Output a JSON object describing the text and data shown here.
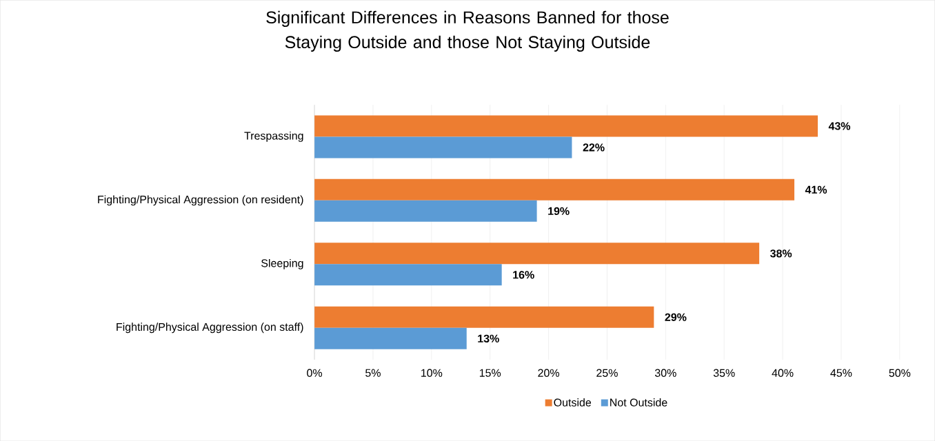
{
  "chart_data": {
    "type": "bar",
    "orientation": "horizontal",
    "title": "Significant Differences in Reasons Banned for those Staying Outside and those Not Staying Outside",
    "categories": [
      "Trespassing",
      "Fighting/Physical Aggression (on resident)",
      "Sleeping",
      "Fighting/Physical Aggression (on staff)"
    ],
    "series": [
      {
        "name": "Outside",
        "color": "#ed7d31",
        "values": [
          43,
          41,
          38,
          29
        ],
        "value_labels": [
          "43%",
          "41%",
          "38%",
          "29%"
        ]
      },
      {
        "name": "Not Outside",
        "color": "#5b9bd5",
        "values": [
          22,
          19,
          16,
          13
        ],
        "value_labels": [
          "22%",
          "19%",
          "16%",
          "13%"
        ]
      }
    ],
    "xlim": [
      0,
      50
    ],
    "xticks": [
      {
        "value": 0,
        "label": "0%"
      },
      {
        "value": 5,
        "label": "5%"
      },
      {
        "value": 10,
        "label": "10%"
      },
      {
        "value": 15,
        "label": "15%"
      },
      {
        "value": 20,
        "label": "20%"
      },
      {
        "value": 25,
        "label": "25%"
      },
      {
        "value": 30,
        "label": "30%"
      },
      {
        "value": 35,
        "label": "35%"
      },
      {
        "value": 40,
        "label": "40%"
      },
      {
        "value": 45,
        "label": "45%"
      },
      {
        "value": 50,
        "label": "50%"
      }
    ],
    "grid": "x",
    "legend": "bottom"
  }
}
